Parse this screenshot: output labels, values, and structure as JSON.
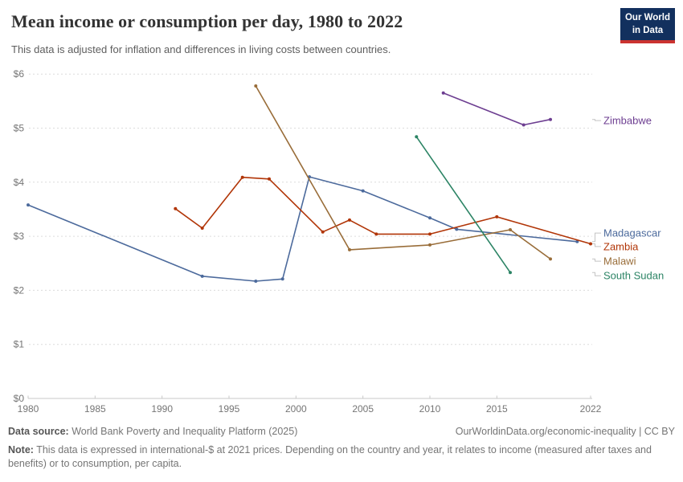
{
  "header": {
    "title": "Mean income or consumption per day, 1980 to 2022",
    "subtitle": "This data is adjusted for inflation and differences in living costs between countries.",
    "logo": {
      "line1": "Our World",
      "line2": "in Data",
      "bg": "#12305E",
      "accent": "#CB3330"
    }
  },
  "chart_data": {
    "type": "line",
    "title": "Mean income or consumption per day, 1980 to 2022",
    "xlabel": "",
    "ylabel": "",
    "xlim": [
      1980,
      2022
    ],
    "ylim": [
      0,
      6
    ],
    "x_ticks": [
      1980,
      1985,
      1990,
      1995,
      2000,
      2005,
      2010,
      2015,
      2022
    ],
    "y_ticks": [
      0,
      1,
      2,
      3,
      4,
      5,
      6
    ],
    "y_tick_prefix": "$",
    "grid": "horizontal-dashed",
    "legend_position": "right-of-lines",
    "series": [
      {
        "name": "Madagascar",
        "color": "#4C6A9C",
        "label_at": 3.06,
        "points": [
          [
            1980,
            3.58
          ],
          [
            1993,
            2.26
          ],
          [
            1997,
            2.17
          ],
          [
            1999,
            2.21
          ],
          [
            2001,
            4.1
          ],
          [
            2005,
            3.84
          ],
          [
            2010,
            3.34
          ],
          [
            2012,
            3.13
          ],
          [
            2021,
            2.9
          ]
        ]
      },
      {
        "name": "Zambia",
        "color": "#B13507",
        "label_at": 2.81,
        "points": [
          [
            1991,
            3.51
          ],
          [
            1993,
            3.15
          ],
          [
            1996,
            4.09
          ],
          [
            1998,
            4.06
          ],
          [
            2002,
            3.08
          ],
          [
            2004,
            3.3
          ],
          [
            2006,
            3.04
          ],
          [
            2010,
            3.04
          ],
          [
            2015,
            3.36
          ],
          [
            2022,
            2.86
          ]
        ]
      },
      {
        "name": "Malawi",
        "color": "#996D39",
        "label_at": 2.54,
        "points": [
          [
            1997,
            5.78
          ],
          [
            2004,
            2.75
          ],
          [
            2010,
            2.84
          ],
          [
            2016,
            3.12
          ],
          [
            2019,
            2.58
          ]
        ]
      },
      {
        "name": "South Sudan",
        "color": "#2C8465",
        "label_at": 2.27,
        "points": [
          [
            2009,
            4.84
          ],
          [
            2016,
            2.33
          ]
        ]
      },
      {
        "name": "Zimbabwe",
        "color": "#6D3E91",
        "label_at": 5.14,
        "points": [
          [
            2011,
            5.65
          ],
          [
            2017,
            5.06
          ],
          [
            2019,
            5.16
          ]
        ]
      }
    ]
  },
  "footer": {
    "data_source_label": "Data source:",
    "data_source": "World Bank Poverty and Inequality Platform (2025)",
    "link": "OurWorldinData.org/economic-inequality | CC BY",
    "note_label": "Note:",
    "note": "This data is expressed in international-$ at 2021 prices. Depending on the country and year, it relates to income (measured after taxes and benefits) or to consumption, per capita."
  }
}
